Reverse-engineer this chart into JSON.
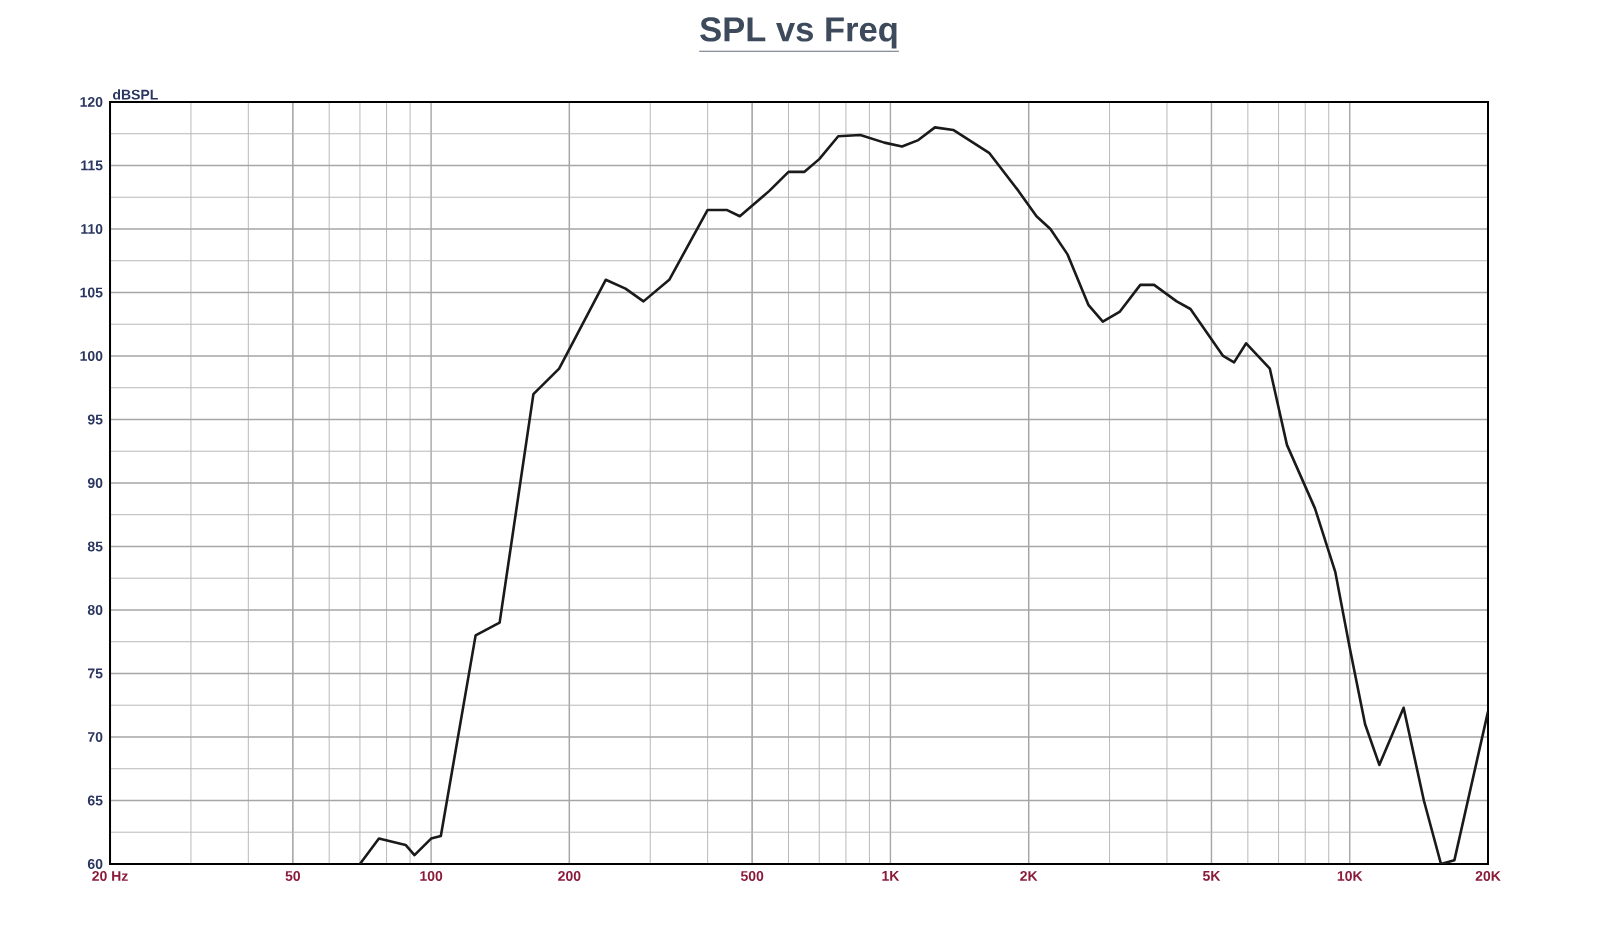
{
  "chart_data": {
    "type": "line",
    "title": "SPL vs Freq",
    "ylabel": "dBSPL",
    "log": "x",
    "grid": true,
    "x": [
      70,
      77,
      88,
      92,
      100,
      105,
      125,
      141,
      167,
      190,
      210,
      240,
      265,
      290,
      330,
      400,
      440,
      470,
      545,
      600,
      650,
      700,
      770,
      860,
      970,
      1060,
      1150,
      1250,
      1370,
      1640,
      1900,
      2080,
      2230,
      2430,
      2700,
      2900,
      3160,
      3500,
      3750,
      4200,
      4500,
      5300,
      5600,
      5950,
      6700,
      7300,
      8400,
      9300,
      10000,
      10800,
      11600,
      13100,
      14500,
      15800,
      16900,
      20000
    ],
    "series": [
      {
        "color": "#1a1a1a",
        "values": [
          60,
          62,
          61.5,
          60.7,
          62,
          62.2,
          78,
          79,
          97,
          99,
          102,
          106,
          105.3,
          104.3,
          106,
          111.5,
          111.5,
          111,
          113,
          114.5,
          114.5,
          115.5,
          117.3,
          117.4,
          116.8,
          116.5,
          117,
          118,
          117.8,
          116,
          113,
          111,
          110,
          108,
          104,
          102.7,
          103.5,
          105.6,
          105.6,
          104.3,
          103.7,
          100,
          99.5,
          101,
          99,
          93,
          88,
          83,
          77,
          71,
          67.8,
          72.3,
          65,
          60,
          60.3,
          72
        ]
      }
    ],
    "xlim": [
      20,
      20000
    ],
    "xticks": [
      {
        "value": 20,
        "label": "20  Hz"
      },
      50,
      100,
      200,
      500,
      {
        "value": 1000,
        "label": "1K"
      },
      {
        "value": 2000,
        "label": "2K"
      },
      {
        "value": 5000,
        "label": "5K"
      },
      {
        "value": 10000,
        "label": "10K"
      },
      {
        "value": 20000,
        "label": "20K"
      }
    ],
    "ylim": [
      60,
      120
    ],
    "yticks": [
      60,
      65,
      70,
      75,
      80,
      85,
      90,
      95,
      100,
      105,
      110,
      115,
      120
    ],
    "marker": "none",
    "line_style": "solid"
  }
}
